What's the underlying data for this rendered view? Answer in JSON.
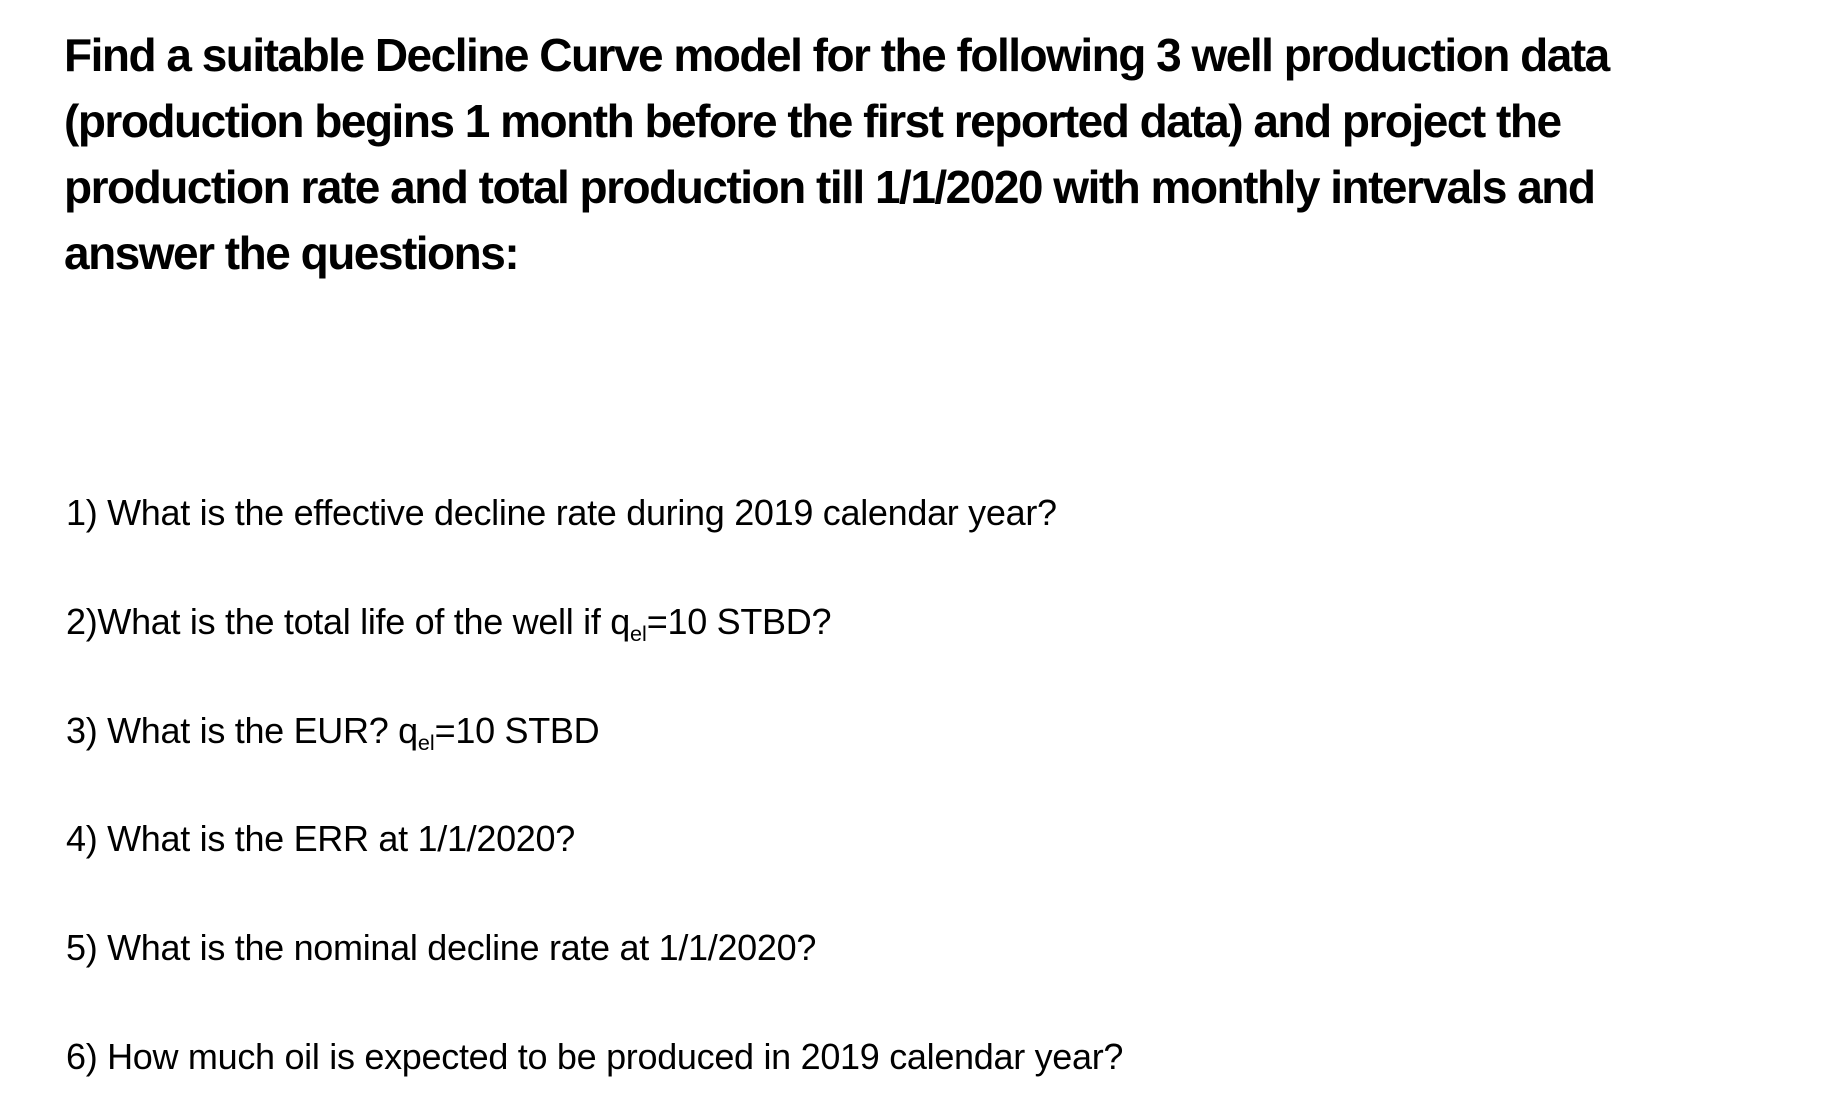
{
  "page": {
    "background_color": "#ffffff",
    "text_color": "#000000"
  },
  "heading": {
    "lines": [
      "Find a suitable Decline Curve model for the following 3 well production data",
      "(production begins 1 month before the first reported data) and project the",
      "production rate and total production till 1/1/2020 with monthly intervals and",
      "answer the questions:"
    ]
  },
  "questions": [
    {
      "text": "1) What is the effective decline rate during 2019 calendar year?"
    },
    {
      "pre": "2)What is the total life of the well if q",
      "sub": "el",
      "post": "=10 STBD?"
    },
    {
      "pre": "3) What is the EUR? q",
      "sub": "el",
      "post": "=10 STBD"
    },
    {
      "text": "4) What is the ERR at 1/1/2020?"
    },
    {
      "text": "5) What is the nominal decline rate at 1/1/2020?"
    },
    {
      "text": "6) How much oil is expected to be produced in 2019 calendar year?"
    }
  ]
}
